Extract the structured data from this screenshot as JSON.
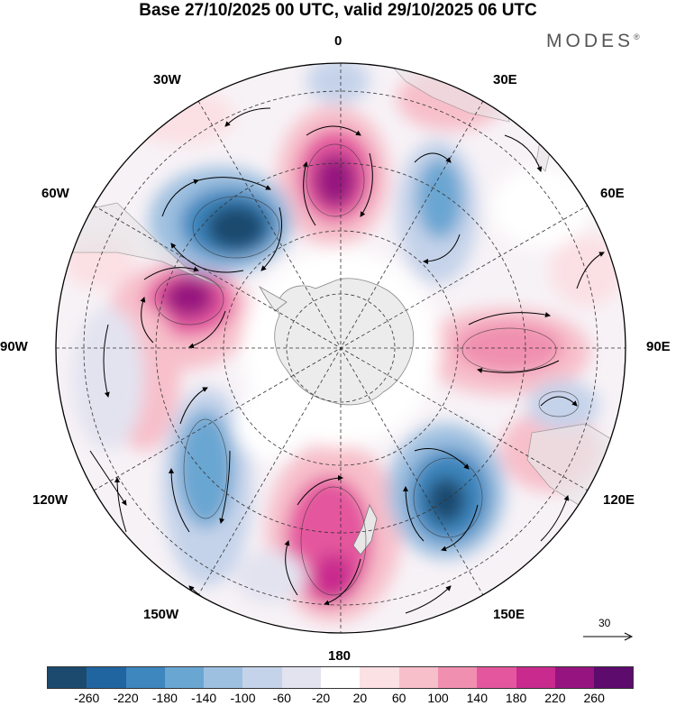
{
  "title": "Base 27/10/2025 00 UTC, valid 29/10/2025 06 UTC",
  "brand": {
    "name": "MODES",
    "mark": "®"
  },
  "longitude_labels": {
    "lon_0": "0",
    "lon_30E": "30E",
    "lon_60E": "60E",
    "lon_90E": "90E",
    "lon_120E": "120E",
    "lon_150E": "150E",
    "lon_180": "180",
    "lon_150W": "150W",
    "lon_120W": "120W",
    "lon_90W": "90W",
    "lon_60W": "60W",
    "lon_30W": "30W"
  },
  "reference_vector": {
    "label": "30"
  },
  "colorbar": {
    "colors": [
      "#1b4a6e",
      "#2065a0",
      "#3d86be",
      "#6aa6d2",
      "#9ec0e0",
      "#c5d3ea",
      "#e3e3f0",
      "#ffffff",
      "#fbe0e4",
      "#f7bfca",
      "#f08fb0",
      "#e4579e",
      "#c82a8d",
      "#96147f",
      "#5e0b6e"
    ],
    "ticks": [
      "-260",
      "-220",
      "-180",
      "-140",
      "-100",
      "-60",
      "-20",
      "20",
      "60",
      "100",
      "140",
      "180",
      "220",
      "260"
    ]
  },
  "projection": "south polar stereographic",
  "anomaly_centers": [
    {
      "name": "south-atlantic-low",
      "sign": "negative",
      "value": -260
    },
    {
      "name": "south-atlantic-high",
      "sign": "positive",
      "value": 240
    },
    {
      "name": "southeast-pacific-high",
      "sign": "positive",
      "value": 240
    },
    {
      "name": "south-pacific-low",
      "sign": "negative",
      "value": -180
    },
    {
      "name": "tasman-high",
      "sign": "positive",
      "value": 180
    },
    {
      "name": "south-of-australia-low",
      "sign": "negative",
      "value": -220
    },
    {
      "name": "indian-ocean-high",
      "sign": "positive",
      "value": 140
    },
    {
      "name": "southwest-indian-low",
      "sign": "negative",
      "value": -100
    }
  ]
}
